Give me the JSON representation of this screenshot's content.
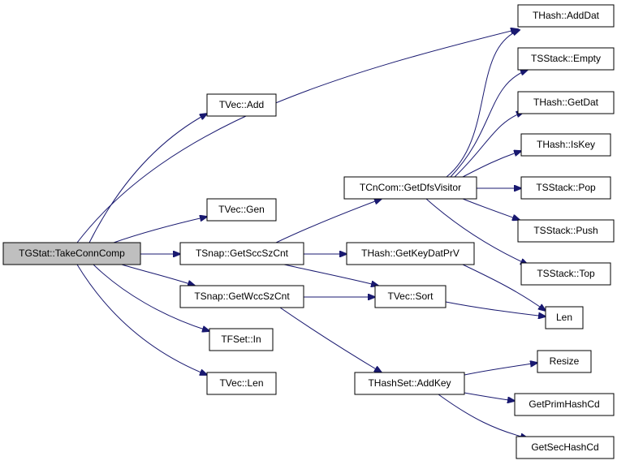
{
  "nodes": [
    {
      "label": "TGStat::TakeConnComp"
    },
    {
      "label": "TVec::Add"
    },
    {
      "label": "TVec::Gen"
    },
    {
      "label": "TSnap::GetSccSzCnt"
    },
    {
      "label": "TSnap::GetWccSzCnt"
    },
    {
      "label": "TFSet::In"
    },
    {
      "label": "TVec::Len"
    },
    {
      "label": "TCnCom::GetDfsVisitor"
    },
    {
      "label": "THash::GetKeyDatPrV"
    },
    {
      "label": "TVec::Sort"
    },
    {
      "label": "THashSet::AddKey"
    },
    {
      "label": "THash::AddDat"
    },
    {
      "label": "TSStack::Empty"
    },
    {
      "label": "THash::GetDat"
    },
    {
      "label": "THash::IsKey"
    },
    {
      "label": "TSStack::Pop"
    },
    {
      "label": "TSStack::Push"
    },
    {
      "label": "TSStack::Top"
    },
    {
      "label": "Len"
    },
    {
      "label": "Resize"
    },
    {
      "label": "GetPrimHashCd"
    },
    {
      "label": "GetSecHashCd"
    }
  ]
}
